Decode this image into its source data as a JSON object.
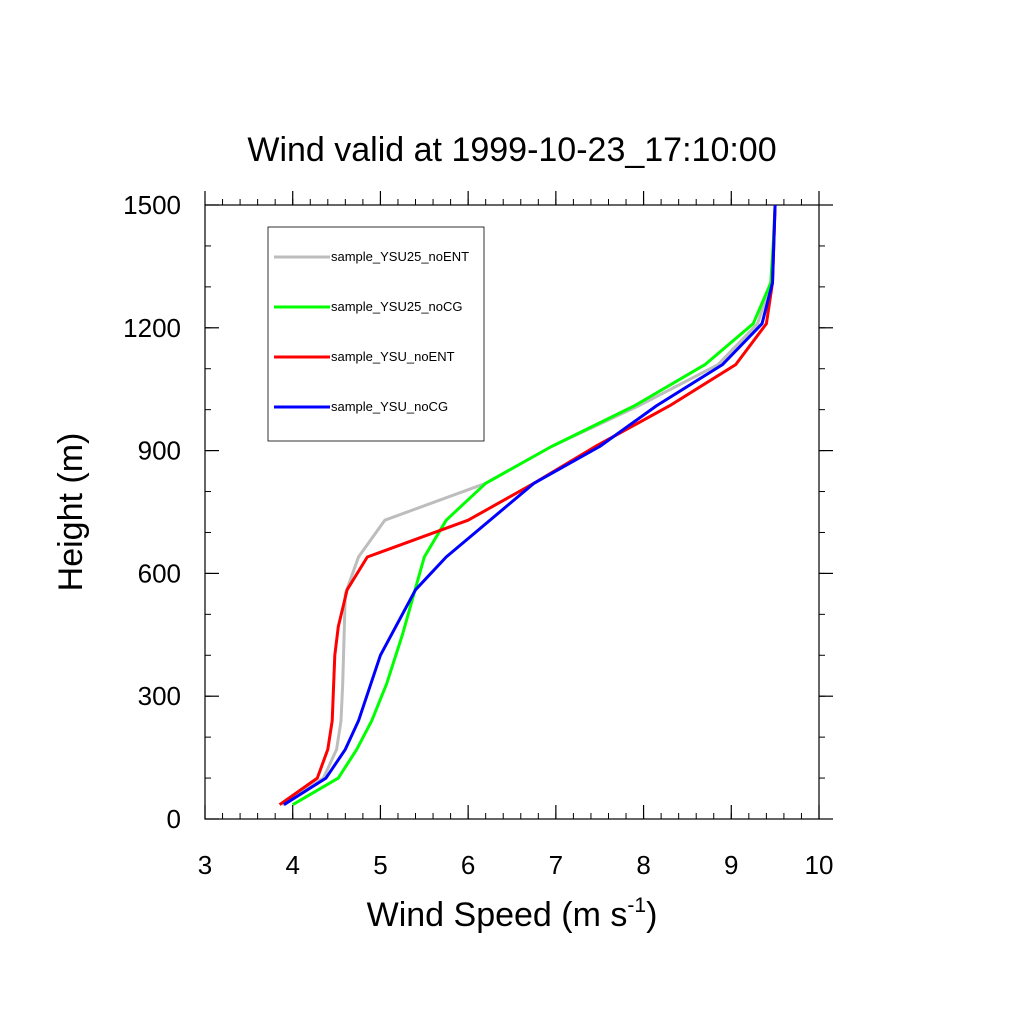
{
  "chart_data": {
    "type": "line",
    "title": "Wind valid at 1999-10-23_17:10:00",
    "xlabel": "Wind Speed (m s",
    "xlabel_sup": "-1",
    "xlabel_end": ")",
    "ylabel": "Height (m)",
    "xlim": [
      3,
      10
    ],
    "ylim": [
      0,
      1500
    ],
    "xticks": [
      "3",
      "4",
      "5",
      "6",
      "7",
      "8",
      "9",
      "10"
    ],
    "yticks": [
      "0",
      "300",
      "600",
      "900",
      "1200",
      "1500"
    ],
    "legend_position": "top-left",
    "grid": false,
    "series": [
      {
        "name": "sample_YSU25_noENT",
        "color": "#bdbdbd",
        "x": [
          3.88,
          4.35,
          4.5,
          4.55,
          4.57,
          4.6,
          4.75,
          5.05,
          6.2,
          6.95,
          7.95,
          8.85,
          9.3,
          9.45,
          9.48,
          9.5
        ],
        "y": [
          35,
          100,
          170,
          240,
          330,
          550,
          640,
          730,
          820,
          910,
          1010,
          1110,
          1210,
          1310,
          1410,
          1500
        ]
      },
      {
        "name": "sample_YSU25_noCG",
        "color": "#00ff00",
        "x": [
          4.0,
          4.52,
          4.73,
          4.9,
          5.07,
          5.25,
          5.5,
          5.75,
          6.2,
          6.95,
          7.9,
          8.7,
          9.25,
          9.45,
          9.48,
          9.5
        ],
        "y": [
          35,
          100,
          170,
          240,
          330,
          450,
          640,
          730,
          820,
          910,
          1010,
          1110,
          1210,
          1310,
          1410,
          1500
        ]
      },
      {
        "name": "sample_YSU_noENT",
        "color": "#ff0000",
        "x": [
          3.85,
          4.28,
          4.4,
          4.45,
          4.48,
          4.52,
          4.62,
          4.85,
          6.0,
          6.75,
          7.45,
          8.3,
          9.05,
          9.4,
          9.47,
          9.5
        ],
        "y": [
          35,
          100,
          170,
          240,
          400,
          470,
          560,
          640,
          730,
          820,
          910,
          1010,
          1110,
          1210,
          1310,
          1500
        ]
      },
      {
        "name": "sample_YSU_noCG",
        "color": "#0000ff",
        "x": [
          3.9,
          4.38,
          4.6,
          4.75,
          5.0,
          5.4,
          5.75,
          6.75,
          7.5,
          8.15,
          8.9,
          9.35,
          9.47,
          9.5
        ],
        "y": [
          35,
          100,
          170,
          240,
          400,
          560,
          640,
          820,
          910,
          1010,
          1110,
          1210,
          1310,
          1500
        ]
      }
    ]
  }
}
